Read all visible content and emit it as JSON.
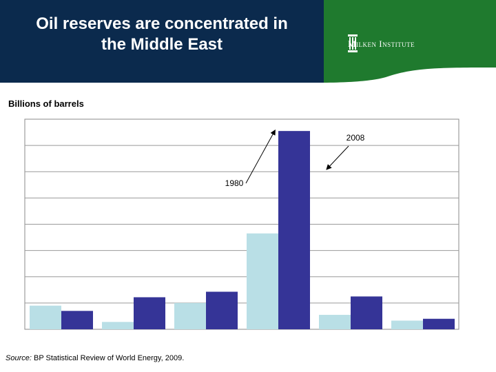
{
  "header": {
    "title_lines": [
      "Oil reserves are concentrated in",
      "the Middle East"
    ],
    "logo_text": "Milken Institute",
    "logo_icon": "column-pillar-icon",
    "colors": {
      "navy": "#0b2a4d",
      "green": "#1f7a2e"
    }
  },
  "chart_data": {
    "type": "bar",
    "unit_label": "Billions of barrels",
    "categories": [
      "",
      "",
      "",
      "",
      "",
      ""
    ],
    "series": [
      {
        "name": "1980",
        "color": "#b9dfe6",
        "values": [
          90,
          28,
          100,
          365,
          55,
          33
        ]
      },
      {
        "name": "2008",
        "color": "#353497",
        "values": [
          70,
          122,
          143,
          755,
          125,
          40
        ]
      }
    ],
    "ylim": [
      0,
      800
    ],
    "gridline_step": 100,
    "grid": true,
    "annotations": [
      {
        "text": "1980",
        "target_series": 0,
        "target_category": 3
      },
      {
        "text": "2008",
        "target_series": 1,
        "target_category": 3
      }
    ]
  },
  "source": {
    "label": "Source:",
    "text": " BP Statistical Review of World Energy, 2009."
  }
}
